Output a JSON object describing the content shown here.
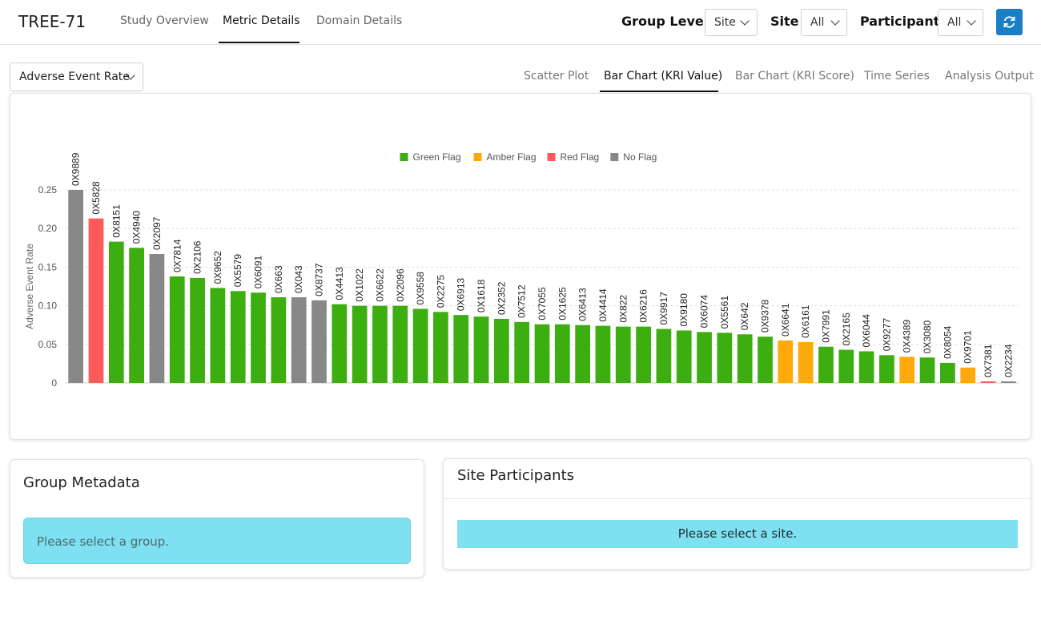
{
  "header": {
    "brand": "TREE-71",
    "nav_tabs": [
      {
        "label": "Study Overview",
        "active": false
      },
      {
        "label": "Metric Details",
        "active": true
      },
      {
        "label": "Domain Details",
        "active": false
      }
    ],
    "filters": {
      "group_level": {
        "label": "Group Level",
        "value": "Site"
      },
      "site": {
        "label": "Site",
        "value": "All"
      },
      "participant": {
        "label": "Participant",
        "value": "All"
      }
    },
    "refresh_icon": "refresh-icon",
    "accent_color": "#1a7fc4"
  },
  "metric_select": {
    "value": "Adverse Event Rate"
  },
  "chart_tabs": [
    {
      "label": "Scatter Plot",
      "active": false
    },
    {
      "label": "Bar Chart (KRI Value)",
      "active": true
    },
    {
      "label": "Bar Chart (KRI Score)",
      "active": false
    },
    {
      "label": "Time Series",
      "active": false
    },
    {
      "label": "Analysis Output",
      "active": false
    }
  ],
  "chart_data": {
    "type": "bar",
    "ylabel": "Adverse Event Rate",
    "ylim": [
      0,
      0.25
    ],
    "yticks": [
      "0",
      "0.05",
      "0.10",
      "0.15",
      "0.20",
      "0.25"
    ],
    "grid": true,
    "legend_position": "top-center",
    "legend": [
      {
        "name": "Green Flag",
        "color": "#3cae0f"
      },
      {
        "name": "Amber Flag",
        "color": "#ffa90a"
      },
      {
        "name": "Red Flag",
        "color": "#ff5a5a"
      },
      {
        "name": "No Flag",
        "color": "#888888"
      }
    ],
    "categories": [
      "0X9889",
      "0X5828",
      "0X8151",
      "0X4940",
      "0X2097",
      "0X7814",
      "0X2106",
      "0X9652",
      "0X5579",
      "0X6091",
      "0X663",
      "0X043",
      "0X8737",
      "0X4413",
      "0X1022",
      "0X6622",
      "0X2096",
      "0X9558",
      "0X2275",
      "0X6913",
      "0X1618",
      "0X2352",
      "0X7512",
      "0X7055",
      "0X1625",
      "0X6413",
      "0X4414",
      "0X822",
      "0X6216",
      "0X9917",
      "0X9180",
      "0X6074",
      "0X5561",
      "0X642",
      "0X9378",
      "0X6641",
      "0X6161",
      "0X7991",
      "0X2165",
      "0X6044",
      "0X9277",
      "0X4389",
      "0X3080",
      "0X8054",
      "0X9701",
      "0X7381",
      "0X2234"
    ],
    "values": [
      0.25,
      0.213,
      0.183,
      0.175,
      0.167,
      0.138,
      0.136,
      0.123,
      0.119,
      0.117,
      0.111,
      0.111,
      0.107,
      0.102,
      0.1,
      0.1,
      0.1,
      0.096,
      0.092,
      0.088,
      0.086,
      0.083,
      0.079,
      0.076,
      0.076,
      0.075,
      0.074,
      0.073,
      0.073,
      0.07,
      0.068,
      0.066,
      0.065,
      0.063,
      0.06,
      0.055,
      0.053,
      0.047,
      0.043,
      0.041,
      0.036,
      0.034,
      0.033,
      0.026,
      0.02,
      0.001,
      0.001
    ],
    "flags": [
      "No Flag",
      "Red Flag",
      "Green Flag",
      "Green Flag",
      "No Flag",
      "Green Flag",
      "Green Flag",
      "Green Flag",
      "Green Flag",
      "Green Flag",
      "Green Flag",
      "No Flag",
      "No Flag",
      "Green Flag",
      "Green Flag",
      "Green Flag",
      "Green Flag",
      "Green Flag",
      "Green Flag",
      "Green Flag",
      "Green Flag",
      "Green Flag",
      "Green Flag",
      "Green Flag",
      "Green Flag",
      "Green Flag",
      "Green Flag",
      "Green Flag",
      "Green Flag",
      "Green Flag",
      "Green Flag",
      "Green Flag",
      "Green Flag",
      "Green Flag",
      "Green Flag",
      "Amber Flag",
      "Amber Flag",
      "Green Flag",
      "Green Flag",
      "Green Flag",
      "Green Flag",
      "Amber Flag",
      "Green Flag",
      "Green Flag",
      "Amber Flag",
      "Red Flag",
      "No Flag"
    ]
  },
  "group_metadata": {
    "title": "Group Metadata",
    "message": "Please select a group."
  },
  "site_participants": {
    "title": "Site Participants",
    "message": "Please select a site."
  }
}
